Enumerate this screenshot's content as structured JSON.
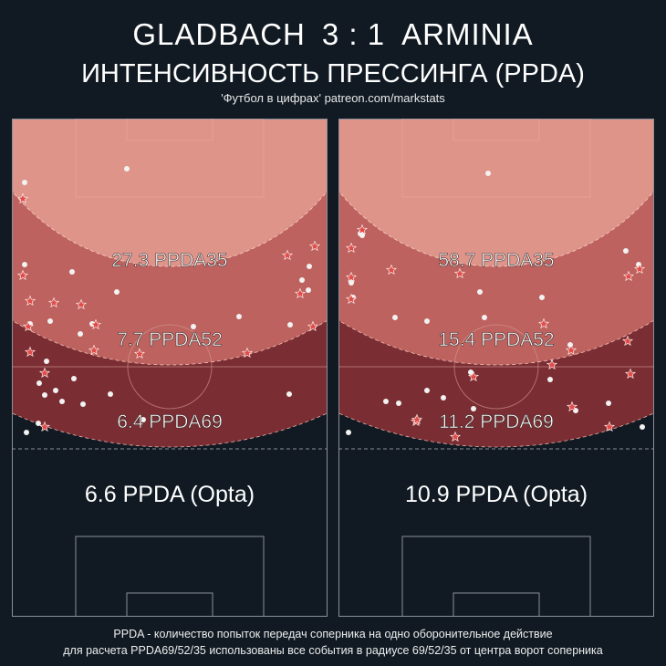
{
  "header": {
    "home_team": "GLADBACH",
    "score": "3 : 1",
    "away_team": "ARMINIA",
    "subtitle": "ИНТЕНСИВНОСТЬ ПРЕССИНГА (PPDA)",
    "credit": "'Футбол в цифрах' patreon.com/markstats"
  },
  "colors": {
    "background": "#111a23",
    "zone35": "#df948a",
    "zone52": "#bd625e",
    "zone69": "#7a2e33",
    "pitch_line": "#8a8f99",
    "dot": "#f2f2f2",
    "star": "#e24c48"
  },
  "pitches": [
    {
      "team": "GLADBACH",
      "ppda35": "27.3 PPDA35",
      "ppda52": "7.7 PPDA52",
      "ppda69": "6.4 PPDA69",
      "opta": "6.6 PPDA (Opta)"
    },
    {
      "team": "ARMINIA",
      "ppda35": "58.7 PPDA35",
      "ppda52": "15.4 PPDA52",
      "ppda69": "11.2 PPDA69",
      "opta": "10.9 PPDA (Opta)"
    }
  ],
  "footnote": {
    "line1": "PPDA - количество попыток передач соперника на одно оборонительное действие",
    "line2": "для расчета PPDA69/52/35 использованы все события в радиусе 69/52/35 от центра ворот соперника"
  }
}
